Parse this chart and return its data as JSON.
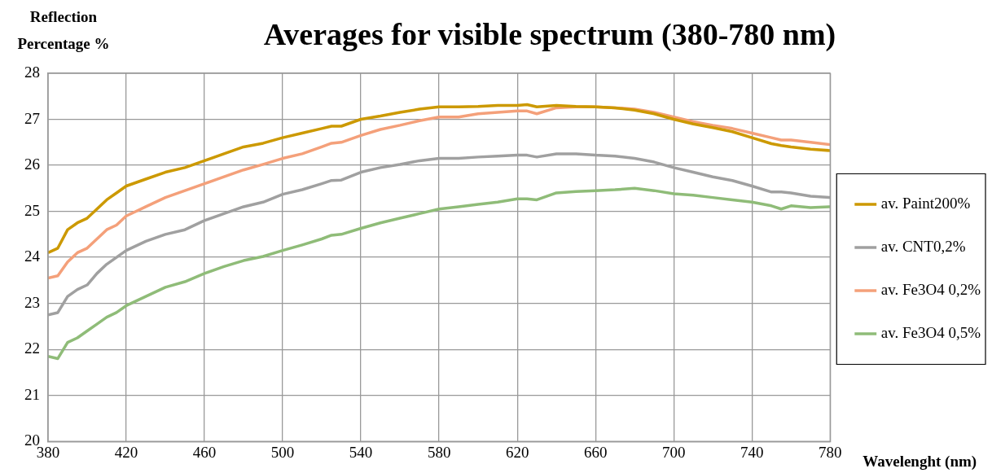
{
  "chart_data": {
    "type": "line",
    "title": "Averages for visible spectrum (380-780 nm)",
    "ylabel": "Reflection Percentage %",
    "xlabel": "Wavelenght (nm)",
    "x": [
      380,
      385,
      390,
      395,
      400,
      405,
      410,
      415,
      420,
      430,
      440,
      450,
      460,
      470,
      480,
      490,
      500,
      510,
      520,
      525,
      530,
      540,
      550,
      560,
      570,
      580,
      590,
      600,
      610,
      620,
      625,
      630,
      640,
      650,
      660,
      670,
      680,
      690,
      700,
      710,
      720,
      730,
      740,
      750,
      755,
      760,
      770,
      780
    ],
    "series": [
      {
        "name": "av. Paint200%",
        "color": "#cc9900",
        "values": [
          24.1,
          24.2,
          24.6,
          24.75,
          24.85,
          25.05,
          25.25,
          25.4,
          25.55,
          25.7,
          25.85,
          25.95,
          26.1,
          26.25,
          26.4,
          26.48,
          26.6,
          26.7,
          26.8,
          26.85,
          26.85,
          27.0,
          27.07,
          27.15,
          27.22,
          27.27,
          27.27,
          27.28,
          27.3,
          27.3,
          27.32,
          27.27,
          27.3,
          27.28,
          27.27,
          27.25,
          27.2,
          27.12,
          27.0,
          26.9,
          26.82,
          26.73,
          26.6,
          26.47,
          26.43,
          26.4,
          26.35,
          26.32
        ]
      },
      {
        "name": "av. CNT0,2%",
        "color": "#a0a0a0",
        "values": [
          22.75,
          22.8,
          23.15,
          23.3,
          23.4,
          23.65,
          23.85,
          24.0,
          24.15,
          24.35,
          24.5,
          24.6,
          24.8,
          24.95,
          25.1,
          25.2,
          25.37,
          25.47,
          25.6,
          25.67,
          25.68,
          25.85,
          25.95,
          26.02,
          26.1,
          26.15,
          26.15,
          26.18,
          26.2,
          26.22,
          26.22,
          26.18,
          26.25,
          26.25,
          26.22,
          26.2,
          26.15,
          26.07,
          25.95,
          25.85,
          25.75,
          25.67,
          25.55,
          25.42,
          25.42,
          25.4,
          25.33,
          25.3
        ]
      },
      {
        "name": "av. Fe3O4 0,2%",
        "color": "#f4a07a",
        "values": [
          23.55,
          23.6,
          23.9,
          24.1,
          24.2,
          24.4,
          24.6,
          24.7,
          24.9,
          25.1,
          25.3,
          25.45,
          25.6,
          25.75,
          25.9,
          26.02,
          26.15,
          26.25,
          26.4,
          26.48,
          26.5,
          26.65,
          26.78,
          26.87,
          26.97,
          27.05,
          27.05,
          27.12,
          27.15,
          27.18,
          27.18,
          27.12,
          27.25,
          27.27,
          27.27,
          27.25,
          27.22,
          27.15,
          27.05,
          26.95,
          26.87,
          26.8,
          26.7,
          26.6,
          26.55,
          26.55,
          26.5,
          26.45
        ]
      },
      {
        "name": "av. Fe3O4 0,5%",
        "color": "#8fbc78",
        "values": [
          21.85,
          21.8,
          22.15,
          22.25,
          22.4,
          22.55,
          22.7,
          22.8,
          22.95,
          23.15,
          23.35,
          23.47,
          23.65,
          23.8,
          23.93,
          24.02,
          24.15,
          24.27,
          24.4,
          24.48,
          24.5,
          24.63,
          24.75,
          24.85,
          24.95,
          25.05,
          25.1,
          25.15,
          25.2,
          25.27,
          25.27,
          25.25,
          25.4,
          25.43,
          25.45,
          25.47,
          25.5,
          25.45,
          25.38,
          25.35,
          25.3,
          25.25,
          25.2,
          25.12,
          25.05,
          25.12,
          25.08,
          25.1
        ]
      }
    ],
    "xlim": [
      380,
      780
    ],
    "xticks": [
      380,
      420,
      460,
      500,
      540,
      580,
      620,
      660,
      700,
      740,
      780
    ],
    "ylim": [
      20,
      28
    ],
    "yticks": [
      20,
      21,
      22,
      23,
      24,
      25,
      26,
      27,
      28
    ],
    "grid": true,
    "legend": "right"
  }
}
